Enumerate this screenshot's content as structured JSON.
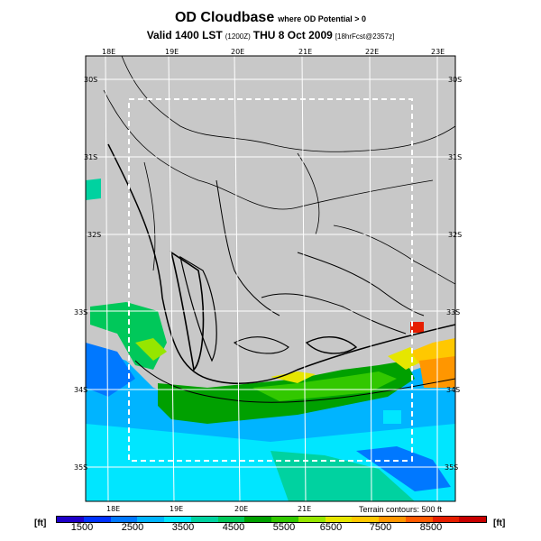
{
  "title": {
    "main": "OD Cloudbase",
    "main_sub": "where OD Potential > 0",
    "valid_text": "Valid 1400 LST",
    "utc_code": "(1200Z)",
    "date_text": "THU 8 Oct 2009",
    "fcst": "[18hrFcst@2357z]"
  },
  "map": {
    "lon_labels_top": [
      "18E",
      "19E",
      "20E",
      "21E",
      "22E",
      "23E"
    ],
    "lon_labels_bottom": [
      "18E",
      "19E",
      "20E",
      "21E"
    ],
    "lat_labels_left": [
      "30S",
      "31S",
      "32S",
      "33S",
      "34S",
      "35S"
    ],
    "lat_labels_right": [
      "30S",
      "31S",
      "32S",
      "33S",
      "34S",
      "35S"
    ],
    "terrain_note": "Terrain contours: 500 ft",
    "land_color": "#c8c8c8",
    "grid_color": "#ffffff"
  },
  "legend": {
    "unit_left": "[ft]",
    "unit_right": "[ft]",
    "tick_labels": [
      "1500",
      "2500",
      "3500",
      "4500",
      "5500",
      "6500",
      "7500",
      "8500"
    ],
    "colors": [
      "#1e00c8",
      "#0032ff",
      "#0078ff",
      "#00b4ff",
      "#00e6ff",
      "#00d2a0",
      "#00c85a",
      "#00a000",
      "#32c800",
      "#96e600",
      "#e6e600",
      "#ffc800",
      "#ff9600",
      "#ff5a00",
      "#e61e00",
      "#c80000"
    ]
  }
}
